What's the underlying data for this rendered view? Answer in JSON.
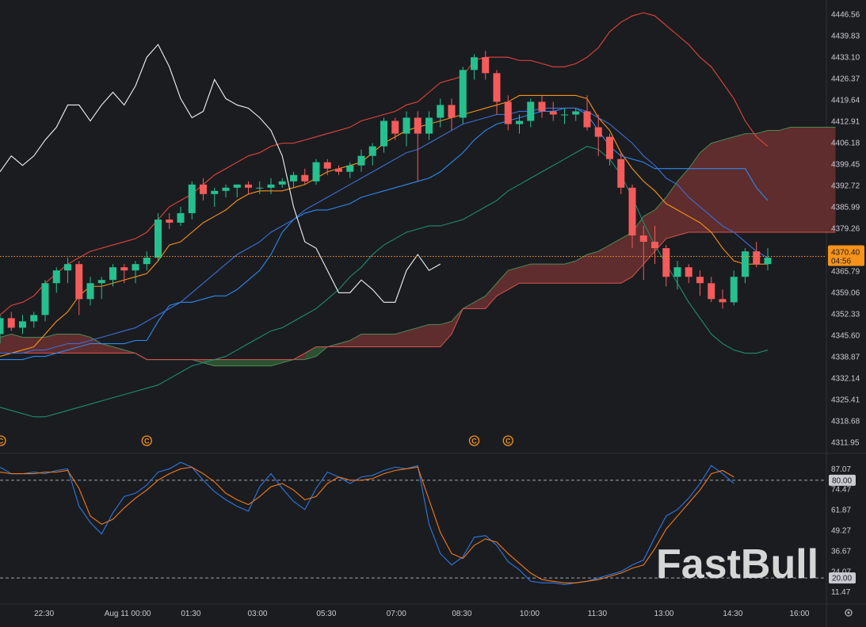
{
  "watermark": "FastBull",
  "colors": {
    "background": "#1b1c20",
    "up": "#26c08f",
    "down": "#f45b5b",
    "tenkan": "#f7931a",
    "kijun": "#2b8af1",
    "bb_upper": "#e3443c",
    "bb_mid": "#3c6fd8",
    "bb_lower": "#1e8c72",
    "chikou": "#f2f2f2",
    "cloud_bear": "#6b3030",
    "cloud_bull": "#2f5a34",
    "stoch_k": "#2b78e4",
    "stoch_d": "#f07a19",
    "last_price": "#f7931a"
  },
  "price_axis": {
    "ticks": [
      "4446.56",
      "4439.83",
      "4433.10",
      "4426.37",
      "4419.64",
      "4412.91",
      "4406.18",
      "4399.45",
      "4392.72",
      "4385.99",
      "4379.26",
      "4372.53",
      "4365.79",
      "4359.06",
      "4352.33",
      "4345.60",
      "4338.87",
      "4332.14",
      "4325.41",
      "4318.68",
      "4311.95"
    ]
  },
  "last_price": {
    "value": "4370.40",
    "countdown": "04:56"
  },
  "stoch_axis": {
    "ticks": [
      "87.07",
      "74.47",
      "61.87",
      "49.27",
      "36.67",
      "24.07",
      "11.47"
    ]
  },
  "stoch_levels": [
    "80.00",
    "20.00"
  ],
  "time_axis": {
    "labels": [
      "22:30",
      "Aug 11 00:00",
      "01:30",
      "03:00",
      "05:30",
      "07:00",
      "08:30",
      "10:00",
      "11:30",
      "13:00",
      "14:30",
      "16:00"
    ]
  },
  "event_markers": [
    {
      "label": "C",
      "time_index": 0
    },
    {
      "label": "C",
      "time_index": 13
    },
    {
      "label": "C",
      "time_index": 42
    },
    {
      "label": "C",
      "time_index": 45
    }
  ],
  "chart_data": {
    "type": "candlestick",
    "instrument_interval": "30m",
    "ylim": [
      4309,
      4449
    ],
    "stoch_ylim": [
      5,
      95
    ],
    "candles": [
      [
        4346,
        4352,
        4343,
        4351
      ],
      [
        4351,
        4353,
        4347,
        4348
      ],
      [
        4348,
        4352,
        4346,
        4350
      ],
      [
        4350,
        4353,
        4348,
        4352
      ],
      [
        4352,
        4363,
        4350,
        4362
      ],
      [
        4362,
        4367,
        4359,
        4366
      ],
      [
        4366,
        4370,
        4362,
        4368
      ],
      [
        4368,
        4369,
        4352,
        4357
      ],
      [
        4357,
        4364,
        4355,
        4362
      ],
      [
        4362,
        4364,
        4357,
        4363
      ],
      [
        4363,
        4368,
        4361,
        4367
      ],
      [
        4367,
        4368,
        4362,
        4366
      ],
      [
        4366,
        4369,
        4362,
        4368
      ],
      [
        4368,
        4372,
        4366,
        4370
      ],
      [
        4370,
        4384,
        4369,
        4382
      ],
      [
        4382,
        4384,
        4379,
        4381
      ],
      [
        4381,
        4386,
        4380,
        4384
      ],
      [
        4384,
        4394,
        4382,
        4393
      ],
      [
        4393,
        4395,
        4388,
        4390
      ],
      [
        4390,
        4392,
        4386,
        4391
      ],
      [
        4391,
        4393,
        4389,
        4392
      ],
      [
        4392,
        4393,
        4389,
        4393
      ],
      [
        4393,
        4394,
        4390,
        4392
      ],
      [
        4392,
        4394,
        4390,
        4392
      ],
      [
        4392,
        4395,
        4390,
        4393
      ],
      [
        4393,
        4395,
        4392,
        4394
      ],
      [
        4394,
        4397,
        4392,
        4396
      ],
      [
        4396,
        4398,
        4393,
        4394
      ],
      [
        4394,
        4401,
        4393,
        4400
      ],
      [
        4400,
        4401,
        4396,
        4398
      ],
      [
        4398,
        4399,
        4396,
        4397
      ],
      [
        4397,
        4400,
        4395,
        4399
      ],
      [
        4399,
        4404,
        4397,
        4402
      ],
      [
        4402,
        4406,
        4399,
        4405
      ],
      [
        4405,
        4414,
        4403,
        4413
      ],
      [
        4413,
        4414,
        4407,
        4409
      ],
      [
        4409,
        4416,
        4405,
        4414
      ],
      [
        4414,
        4416,
        4394,
        4409
      ],
      [
        4409,
        4416,
        4407,
        4414
      ],
      [
        4414,
        4420,
        4411,
        4418
      ],
      [
        4418,
        4420,
        4410,
        4414
      ],
      [
        4414,
        4430,
        4412,
        4429
      ],
      [
        4429,
        4434,
        4426,
        4433
      ],
      [
        4433,
        4435,
        4426,
        4428
      ],
      [
        4428,
        4429,
        4415,
        4419
      ],
      [
        4419,
        4421,
        4410,
        4412
      ],
      [
        4412,
        4415,
        4409,
        4413
      ],
      [
        4413,
        4420,
        4411,
        4419
      ],
      [
        4419,
        4421,
        4414,
        4416
      ],
      [
        4416,
        4419,
        4413,
        4415
      ],
      [
        4415,
        4417,
        4412,
        4415
      ],
      [
        4415,
        4417,
        4413,
        4416
      ],
      [
        4416,
        4421,
        4410,
        4411
      ],
      [
        4411,
        4415,
        4402,
        4408
      ],
      [
        4408,
        4409,
        4399,
        4401
      ],
      [
        4401,
        4403,
        4390,
        4392
      ],
      [
        4392,
        4393,
        4373,
        4377
      ],
      [
        4377,
        4380,
        4363,
        4375
      ],
      [
        4375,
        4380,
        4368,
        4373
      ],
      [
        4373,
        4374,
        4361,
        4364
      ],
      [
        4364,
        4369,
        4360,
        4367
      ],
      [
        4367,
        4368,
        4362,
        4364
      ],
      [
        4364,
        4366,
        4358,
        4362
      ],
      [
        4362,
        4364,
        4356,
        4357
      ],
      [
        4357,
        4360,
        4354,
        4356
      ],
      [
        4356,
        4366,
        4355,
        4364
      ],
      [
        4364,
        4373,
        4362,
        4372
      ],
      [
        4372,
        4375,
        4367,
        4368
      ],
      [
        4368,
        4373,
        4366,
        4370
      ]
    ],
    "series": [
      {
        "name": "",
        "key": "tenkan",
        "values": [
          4339,
          4340,
          4341,
          4342,
          4346,
          4350,
          4353,
          4358,
          4361,
          4361,
          4362,
          4363,
          4364,
          4365,
          4369,
          4374,
          4375,
          4378,
          4381,
          4383,
          4385,
          4388,
          4390,
          4391,
          4391,
          4391,
          4392,
          4393,
          4395,
          4397,
          4398,
          4399,
          4400,
          4403,
          4406,
          4408,
          4410,
          4411,
          4412,
          4413,
          4414,
          4415,
          4416,
          4417,
          4418,
          4419,
          4421,
          4421,
          4421,
          4421,
          4421,
          4421,
          4420,
          4414,
          4410,
          4403,
          4398,
          4394,
          4391,
          4387,
          4385,
          4383,
          4381,
          4378,
          4373,
          4369,
          4368,
          4368,
          4368
        ]
      },
      {
        "name": "",
        "key": "kijun",
        "values": [
          4338,
          4338,
          4338,
          4339,
          4339,
          4340,
          4341,
          4342,
          4343,
          4343,
          4343,
          4343,
          4344,
          4344,
          4350,
          4355,
          4356,
          4356,
          4357,
          4358,
          4358,
          4360,
          4363,
          4366,
          4371,
          4378,
          4382,
          4384,
          4385,
          4385,
          4386,
          4387,
          4389,
          4390,
          4391,
          4392,
          4393,
          4394,
          4395,
          4397,
          4400,
          4403,
          4407,
          4410,
          4412,
          4413,
          4414,
          4415,
          4416,
          4416,
          4417,
          4417,
          4415,
          4410,
          4405,
          4402,
          4401,
          4400,
          4398,
          4398,
          4398,
          4398,
          4398,
          4398,
          4398,
          4398,
          4398,
          4392,
          4388
        ]
      },
      {
        "name": "",
        "key": "bb_upper",
        "values": [
          4352,
          4355,
          4356,
          4358,
          4362,
          4365,
          4368,
          4370,
          4372,
          4373,
          4374,
          4375,
          4376,
          4378,
          4382,
          4386,
          4388,
          4390,
          4393,
          4396,
          4398,
          4400,
          4402,
          4403,
          4405,
          4406,
          4406,
          4407,
          4408,
          4409,
          4410,
          4411,
          4413,
          4414,
          4415,
          4416,
          4418,
          4419,
          4422,
          4425,
          4426,
          4427,
          4432,
          4433,
          4433,
          4433,
          4432,
          4432,
          4431,
          4430,
          4430,
          4431,
          4433,
          4436,
          4441,
          4444,
          4446,
          4447,
          4446,
          4443,
          4440,
          4437,
          4433,
          4430,
          4425,
          4420,
          4413,
          4408,
          4405
        ]
      },
      {
        "name": "",
        "key": "bb_mid",
        "values": [
          4340,
          4340,
          4340,
          4341,
          4341,
          4342,
          4343,
          4343,
          4344,
          4345,
          4346,
          4347,
          4348,
          4350,
          4352,
          4354,
          4356,
          4359,
          4362,
          4365,
          4368,
          4371,
          4373,
          4375,
          4378,
          4380,
          4382,
          4385,
          4387,
          4389,
          4391,
          4393,
          4395,
          4397,
          4399,
          4401,
          4403,
          4404,
          4406,
          4408,
          4410,
          4412,
          4413,
          4414,
          4415,
          4415,
          4416,
          4416,
          4417,
          4417,
          4417,
          4417,
          4416,
          4414,
          4412,
          4409,
          4406,
          4402,
          4399,
          4395,
          4393,
          4389,
          4386,
          4383,
          4380,
          4378,
          4375,
          4372,
          4370
        ]
      },
      {
        "name": "",
        "key": "bb_lower",
        "values": [
          4323,
          4322,
          4321,
          4320,
          4320,
          4321,
          4322,
          4323,
          4324,
          4325,
          4326,
          4327,
          4328,
          4329,
          4330,
          4332,
          4334,
          4336,
          4337,
          4338,
          4339,
          4341,
          4343,
          4345,
          4347,
          4348,
          4350,
          4352,
          4354,
          4357,
          4360,
          4364,
          4367,
          4371,
          4374,
          4376,
          4378,
          4379,
          4380,
          4380,
          4381,
          4382,
          4384,
          4386,
          4388,
          4391,
          4393,
          4395,
          4397,
          4399,
          4401,
          4403,
          4405,
          4404,
          4401,
          4396,
          4389,
          4381,
          4374,
          4368,
          4362,
          4356,
          4351,
          4346,
          4343,
          4341,
          4340,
          4340,
          4341
        ]
      },
      {
        "name": "",
        "key": "chikou",
        "values": [
          4397,
          4402,
          4399,
          4402,
          4407,
          4411,
          4418,
          4418,
          4413,
          4418,
          4422,
          4418,
          4424,
          4433,
          4437,
          4430,
          4420,
          4414,
          4416,
          4426,
          4420,
          4418,
          4417,
          4414,
          4410,
          4402,
          4386,
          4375,
          4373,
          4366,
          4359,
          4359,
          4363,
          4360,
          4356,
          4356,
          4366,
          4371,
          4366,
          4368
        ]
      }
    ],
    "cloud": {
      "span_a": [
        4343,
        4344,
        4345,
        4346,
        4345,
        4345,
        4345,
        4346,
        4346,
        4346,
        4345,
        4343,
        4342,
        4341,
        4340,
        4338,
        4338,
        4338,
        4338,
        4338,
        4337,
        4336,
        4336,
        4336,
        4336,
        4336,
        4336,
        4337,
        4338,
        4338,
        4339,
        4342,
        4343,
        4344,
        4346,
        4346,
        4346,
        4346,
        4347,
        4348,
        4349,
        4349,
        4350,
        4354,
        4356,
        4358,
        4362,
        4366,
        4367,
        4368,
        4368,
        4368,
        4368,
        4369,
        4371,
        4372,
        4374,
        4376,
        4378,
        4383,
        4385,
        4389,
        4394,
        4398,
        4403,
        4406,
        4407,
        4408,
        4409,
        4409,
        4410,
        4410,
        4411,
        4411,
        4411,
        4411,
        4411
      ],
      "span_b": [
        4341,
        4340,
        4340,
        4340,
        4340,
        4340,
        4340,
        4340,
        4340,
        4340,
        4340,
        4340,
        4340,
        4340,
        4340,
        4338,
        4338,
        4338,
        4338,
        4338,
        4338,
        4338,
        4338,
        4338,
        4338,
        4338,
        4338,
        4338,
        4338,
        4340,
        4342,
        4342,
        4342,
        4342,
        4342,
        4342,
        4342,
        4342,
        4342,
        4342,
        4342,
        4342,
        4346,
        4354,
        4354,
        4354,
        4358,
        4360,
        4362,
        4362,
        4362,
        4362,
        4362,
        4362,
        4362,
        4362,
        4362,
        4362,
        4364,
        4368,
        4372,
        4376,
        4377,
        4378,
        4378,
        4378,
        4378,
        4378,
        4378,
        4378,
        4378,
        4378,
        4378,
        4378,
        4378,
        4378,
        4378
      ]
    },
    "stochastic": {
      "k": [
        88,
        84,
        84,
        85,
        84,
        86,
        87,
        64,
        54,
        47,
        60,
        70,
        72,
        77,
        85,
        87,
        91,
        88,
        80,
        73,
        68,
        64,
        61,
        76,
        84,
        75,
        67,
        62,
        75,
        85,
        82,
        78,
        82,
        83,
        86,
        88,
        87,
        89,
        53,
        35,
        28,
        33,
        45,
        46,
        40,
        30,
        25,
        18,
        17,
        17,
        16,
        17,
        18,
        20,
        22,
        24,
        28,
        31,
        45,
        58,
        62,
        69,
        78,
        89,
        84,
        78
      ],
      "d": [
        85,
        84,
        84,
        84,
        85,
        85,
        86,
        75,
        58,
        53,
        56,
        63,
        69,
        74,
        80,
        84,
        87,
        88,
        84,
        79,
        72,
        68,
        65,
        70,
        76,
        78,
        74,
        68,
        70,
        78,
        82,
        80,
        80,
        81,
        84,
        86,
        87,
        88,
        68,
        48,
        35,
        32,
        40,
        44,
        42,
        35,
        29,
        23,
        19,
        18,
        17,
        17,
        18,
        19,
        21,
        23,
        26,
        28,
        38,
        50,
        58,
        66,
        74,
        84,
        86,
        82
      ]
    }
  }
}
